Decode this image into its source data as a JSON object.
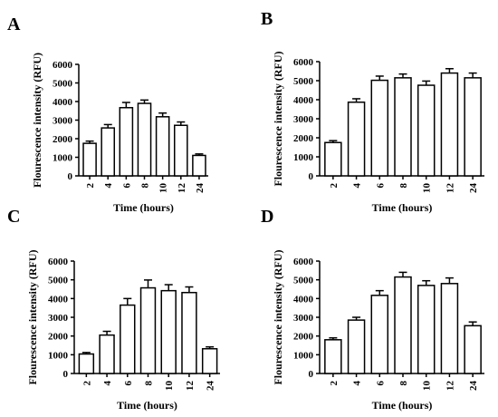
{
  "chart_data": [
    {
      "panel": "A",
      "type": "bar",
      "categories": [
        "2",
        "4",
        "6",
        "8",
        "10",
        "12",
        "24"
      ],
      "values": [
        1750,
        2580,
        3670,
        3900,
        3180,
        2720,
        1100
      ],
      "errors": [
        120,
        180,
        280,
        180,
        200,
        180,
        80
      ],
      "xlabel": "Time (hours)",
      "ylabel": "Flourescence intensity (RFU)",
      "ylim": [
        0,
        6000
      ],
      "yticks": [
        "0",
        "1000",
        "2000",
        "3000",
        "4000",
        "5000",
        "6000"
      ],
      "grid": false
    },
    {
      "panel": "B",
      "type": "bar",
      "categories": [
        "2",
        "4",
        "6",
        "8",
        "10",
        "12",
        "24"
      ],
      "values": [
        1750,
        3870,
        5020,
        5150,
        4760,
        5400,
        5150
      ],
      "errors": [
        100,
        180,
        220,
        200,
        220,
        230,
        250
      ],
      "xlabel": "Time (hours)",
      "ylabel": "Flourescence intensity (RFU)",
      "ylim": [
        0,
        6000
      ],
      "yticks": [
        "0",
        "1000",
        "2000",
        "3000",
        "4000",
        "5000",
        "6000"
      ],
      "grid": false
    },
    {
      "panel": "C",
      "type": "bar",
      "categories": [
        "2",
        "4",
        "6",
        "8",
        "10",
        "12",
        "24"
      ],
      "values": [
        1040,
        2050,
        3650,
        4570,
        4420,
        4320,
        1320
      ],
      "errors": [
        80,
        200,
        350,
        420,
        320,
        300,
        100
      ],
      "xlabel": "Time (hours)",
      "ylabel": "Flourescence intensity (RFU)",
      "ylim": [
        0,
        6000
      ],
      "yticks": [
        "0",
        "1000",
        "2000",
        "3000",
        "4000",
        "5000",
        "6000"
      ],
      "grid": false
    },
    {
      "panel": "D",
      "type": "bar",
      "categories": [
        "2",
        "4",
        "6",
        "8",
        "10",
        "12",
        "24"
      ],
      "values": [
        1800,
        2850,
        4170,
        5150,
        4700,
        4800,
        2550
      ],
      "errors": [
        100,
        150,
        250,
        250,
        250,
        300,
        200
      ],
      "xlabel": "Time (hours)",
      "ylabel": "Flourescence intensity (RFU)",
      "ylim": [
        0,
        6000
      ],
      "yticks": [
        "0",
        "1000",
        "2000",
        "3000",
        "4000",
        "5000",
        "6000"
      ],
      "grid": false
    }
  ]
}
